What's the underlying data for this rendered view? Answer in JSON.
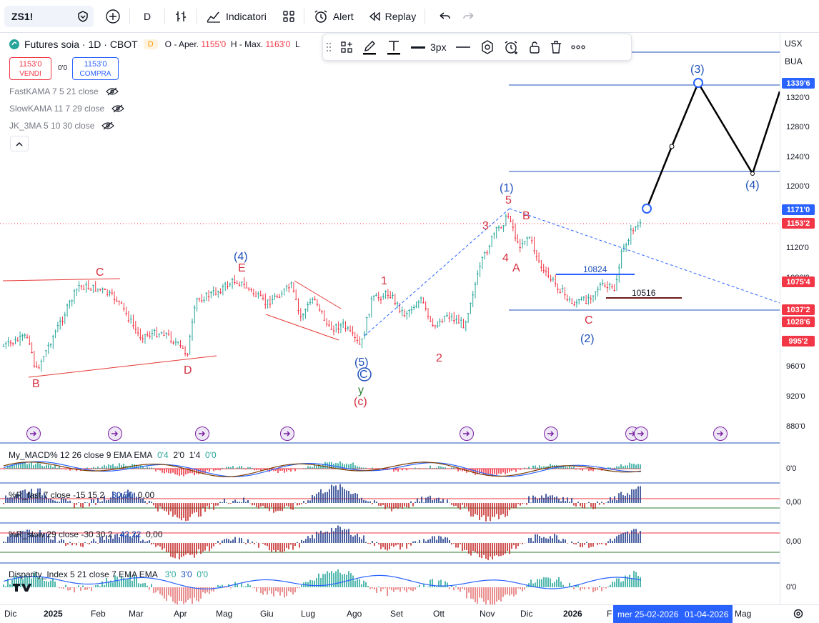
{
  "toolbar": {
    "symbol": "ZS1!",
    "interval": "D",
    "indicators_label": "Indicatori",
    "alert_label": "Alert",
    "replay_label": "Replay"
  },
  "legend": {
    "title": "Futures soia · 1D · CBOT",
    "badge": "D",
    "ohlc_open_label": "O - Aper.",
    "ohlc_open": "1155'0",
    "ohlc_high_label": "H - Max.",
    "ohlc_high": "1163'0",
    "ohlc_low_label": "L"
  },
  "trade": {
    "sell_price": "1153'0",
    "sell_label": "VENDI",
    "spread": "0'0",
    "buy_price": "1153'0",
    "buy_label": "COMPRA"
  },
  "indicators": [
    "FastKAMA 7 5 21 close",
    "SlowKAMA 11 7 29 close",
    "JK_3MA 5 10 30 close"
  ],
  "drawbar": {
    "width_label": "3px"
  },
  "price_axis": {
    "currency": "USX",
    "data_source": "BUA",
    "labels": [
      "1320'0",
      "1280'0",
      "1240'0",
      "1200'0",
      "1120'0",
      "960'0",
      "920'0",
      "880'0"
    ],
    "tags": [
      {
        "text": "1339'6",
        "color": "#2962ff"
      },
      {
        "text": "1171'0",
        "color": "#2962ff"
      },
      {
        "text": "1153'2",
        "color": "#f23645"
      },
      {
        "text": "1075'4",
        "color": "#f23645"
      },
      {
        "text": "1037'2",
        "color": "#f23645"
      },
      {
        "text": "1028'6",
        "color": "#f23645"
      },
      {
        "text": "995'2",
        "color": "#f23645"
      }
    ],
    "partial_label": "1080'0"
  },
  "levels": {
    "l1": "10824",
    "l2": "10516"
  },
  "waves": {
    "w4_top": "(4)",
    "w4_top_e": "E",
    "c_left": "C",
    "b_left": "B",
    "d_left": "D",
    "w5": "(5)",
    "circ_c": "C",
    "y": "y",
    "paren_c": "(c)",
    "one": "1",
    "two": "2",
    "three": "3",
    "four": "4",
    "five": "5",
    "w1": "(1)",
    "a": "A",
    "b": "B",
    "c": "C",
    "w2": "(2)",
    "w3": "(3)",
    "w4": "(4)"
  },
  "panels": {
    "macd": {
      "title": "My_MACD% 12 26 close 9 EMA EMA",
      "v1": "0'4",
      "v2": "2'0",
      "v3": "1'4",
      "v4": "0'0",
      "axis": "0'0"
    },
    "rfast": {
      "title": "%R_fast 7 close -15 15 2",
      "v1": "30,50",
      "v2": "0,00",
      "axis": "0,00"
    },
    "rslow": {
      "title": "%R_slow 29 close -30 30 2",
      "v1": "42,22",
      "v2": "0,00",
      "axis": "0,00"
    },
    "disp": {
      "title": "Disparity_Index 5 21 close 7 EMA EMA",
      "v1": "3'0",
      "v2": "3'0",
      "v3": "0'0",
      "axis": "0'0"
    }
  },
  "time_axis": {
    "labels": [
      "Dic",
      "2025",
      "Feb",
      "Mar",
      "Apr",
      "Mag",
      "Giu",
      "Lug",
      "Ago",
      "Set",
      "Ott",
      "Nov",
      "Dic",
      "2026",
      "F"
    ],
    "crosshair_date": "mer 25-02-2026",
    "range_date": "01-04-2026",
    "trailing": "Mag"
  },
  "colors": {
    "bull": "#26a69a",
    "bear": "#f23645",
    "wave_blue": "#1e4fb8",
    "wave_red": "#d32f3f",
    "accent": "#2962ff"
  }
}
